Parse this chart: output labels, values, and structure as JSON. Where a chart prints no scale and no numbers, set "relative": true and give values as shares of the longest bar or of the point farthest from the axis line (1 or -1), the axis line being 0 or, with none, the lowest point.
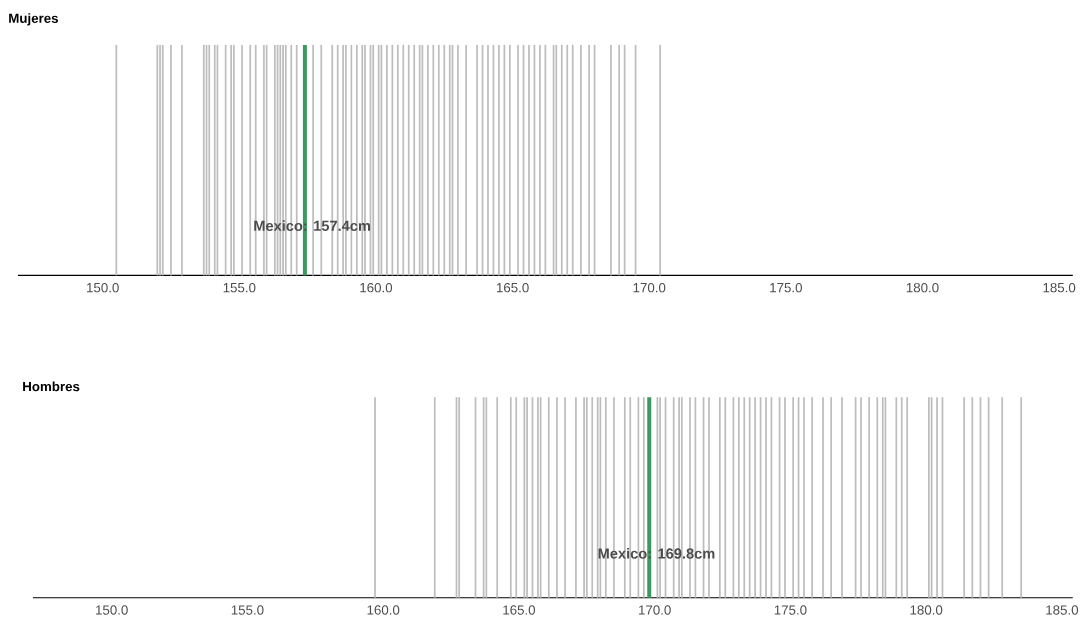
{
  "chart_data": [
    {
      "type": "bar",
      "title": "Mujeres",
      "relative": true,
      "color": "#bdbdbd",
      "x": [
        150.5,
        152.0,
        152.1,
        152.2,
        152.5,
        152.9,
        153.7,
        153.8,
        153.9,
        154.1,
        154.2,
        154.5,
        154.7,
        154.8,
        155.1,
        155.4,
        155.6,
        155.9,
        156.0,
        156.3,
        156.4,
        156.5,
        156.6,
        156.7,
        156.9,
        157.1,
        157.7,
        158.0,
        158.4,
        158.6,
        158.8,
        158.9,
        159.1,
        159.3,
        159.5,
        159.6,
        159.8,
        159.9,
        160.1,
        160.2,
        160.4,
        160.6,
        160.8,
        161.0,
        161.2,
        161.4,
        161.6,
        161.7,
        161.9,
        162.1,
        162.3,
        162.5,
        162.7,
        162.8,
        163.0,
        163.3,
        163.7,
        163.9,
        164.1,
        164.3,
        164.5,
        164.7,
        164.9,
        165.2,
        165.4,
        165.6,
        165.8,
        166.0,
        166.2,
        166.5,
        166.6,
        166.8,
        167.0,
        167.2,
        167.5,
        167.8,
        168.0,
        168.6,
        168.9,
        169.1,
        169.5,
        170.4
      ],
      "values": [
        1,
        1,
        1,
        1,
        1,
        1,
        1,
        1,
        1,
        1,
        1,
        1,
        1,
        1,
        1,
        1,
        1,
        1,
        1,
        1,
        1,
        1,
        1,
        1,
        1,
        1,
        1,
        1,
        1,
        1,
        1,
        1,
        1,
        1,
        1,
        1,
        1,
        1,
        1,
        1,
        1,
        1,
        1,
        1,
        1,
        1,
        1,
        1,
        1,
        1,
        1,
        1,
        1,
        1,
        1,
        1,
        1,
        1,
        1,
        1,
        1,
        1,
        1,
        1,
        1,
        1,
        1,
        1,
        1,
        1,
        1,
        1,
        1,
        1,
        1,
        1,
        1,
        1,
        1,
        1,
        1,
        1
      ],
      "xlim": [
        146.9,
        185.5
      ],
      "xticks": [
        {
          "value": 150,
          "label": "150.0"
        },
        {
          "value": 155,
          "label": "155.0"
        },
        {
          "value": 160,
          "label": "160.0"
        },
        {
          "value": 165,
          "label": "165.0"
        },
        {
          "value": 170,
          "label": "170.0"
        },
        {
          "value": 175,
          "label": "175.0"
        },
        {
          "value": 180,
          "label": "180.0"
        },
        {
          "value": 185,
          "label": "185.0"
        }
      ],
      "ref_lines": [
        {
          "axis": "x",
          "value": 157.4,
          "label": "Mexico: 157.4cm",
          "color": "#3c9a5f"
        }
      ]
    },
    {
      "type": "bar",
      "title": "Hombres",
      "relative": true,
      "color": "#bdbdbd",
      "x": [
        159.7,
        161.9,
        162.7,
        162.8,
        163.4,
        163.7,
        163.8,
        164.2,
        164.7,
        164.9,
        165.2,
        165.3,
        165.5,
        165.7,
        165.8,
        166.1,
        166.4,
        166.7,
        167.1,
        167.4,
        167.5,
        167.7,
        167.9,
        168.0,
        168.2,
        168.5,
        168.9,
        169.1,
        169.4,
        169.6,
        170.1,
        170.2,
        170.4,
        170.7,
        170.9,
        171.0,
        171.3,
        171.5,
        171.8,
        172.0,
        172.4,
        172.6,
        172.9,
        173.1,
        173.3,
        173.5,
        173.7,
        173.9,
        174.1,
        174.3,
        174.6,
        174.8,
        175.1,
        175.3,
        175.5,
        175.8,
        176.2,
        176.5,
        176.9,
        177.4,
        177.6,
        177.9,
        178.2,
        178.4,
        178.5,
        178.9,
        179.1,
        179.3,
        180.1,
        180.2,
        180.4,
        180.6,
        181.4,
        181.7,
        182.0,
        182.3,
        182.8,
        183.5
      ],
      "values": [
        1,
        1,
        1,
        1,
        1,
        1,
        1,
        1,
        1,
        1,
        1,
        1,
        1,
        1,
        1,
        1,
        1,
        1,
        1,
        1,
        1,
        1,
        1,
        1,
        1,
        1,
        1,
        1,
        1,
        1,
        1,
        1,
        1,
        1,
        1,
        1,
        1,
        1,
        1,
        1,
        1,
        1,
        1,
        1,
        1,
        1,
        1,
        1,
        1,
        1,
        1,
        1,
        1,
        1,
        1,
        1,
        1,
        1,
        1,
        1,
        1,
        1,
        1,
        1,
        1,
        1,
        1,
        1,
        1,
        1,
        1,
        1,
        1,
        1,
        1,
        1,
        1,
        1
      ],
      "xlim": [
        147.1,
        185.4
      ],
      "xticks": [
        {
          "value": 150,
          "label": "150.0"
        },
        {
          "value": 155,
          "label": "155.0"
        },
        {
          "value": 160,
          "label": "160.0"
        },
        {
          "value": 165,
          "label": "165.0"
        },
        {
          "value": 170,
          "label": "170.0"
        },
        {
          "value": 175,
          "label": "175.0"
        },
        {
          "value": 180,
          "label": "180.0"
        },
        {
          "value": 185,
          "label": "185.0"
        }
      ],
      "ref_lines": [
        {
          "axis": "x",
          "value": 169.8,
          "label": "Mexico: 169.8cm",
          "color": "#3c9a5f"
        }
      ]
    }
  ]
}
